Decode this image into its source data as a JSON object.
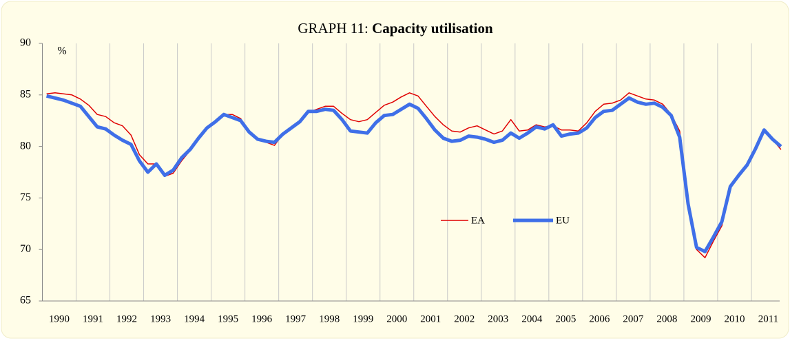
{
  "chart_data": {
    "type": "line",
    "title_prefix": "GRAPH 11:",
    "title": "Capacity utilisation",
    "ylabel": "%",
    "categories": [
      "1990",
      null,
      null,
      null,
      "1991",
      null,
      null,
      null,
      "1992",
      null,
      null,
      null,
      "1993",
      null,
      null,
      null,
      "1994",
      null,
      null,
      null,
      "1995",
      null,
      null,
      null,
      "1996",
      null,
      null,
      null,
      "1997",
      null,
      null,
      null,
      "1998",
      null,
      null,
      null,
      "1999",
      null,
      null,
      null,
      "2000",
      null,
      null,
      null,
      "2001",
      null,
      null,
      null,
      "2002",
      null,
      null,
      null,
      "2003",
      null,
      null,
      null,
      "2004",
      null,
      null,
      null,
      "2005",
      null,
      null,
      null,
      "2006",
      null,
      null,
      null,
      "2007",
      null,
      null,
      null,
      "2008",
      null,
      null,
      null,
      "2009",
      null,
      null,
      null,
      "2010",
      null,
      null,
      null,
      "2011",
      null,
      null,
      null
    ],
    "series": [
      {
        "name": "EA",
        "color": "#e00000",
        "width": 1.5,
        "values": [
          85.1,
          85.2,
          85.1,
          85.0,
          84.6,
          84.0,
          83.1,
          82.9,
          82.3,
          82.0,
          81.1,
          79.2,
          78.3,
          78.3,
          77.1,
          77.4,
          78.6,
          79.6,
          80.7,
          81.8,
          82.4,
          83.1,
          83.1,
          82.7,
          81.4,
          80.7,
          80.4,
          80.1,
          81.2,
          81.7,
          82.3,
          83.3,
          83.6,
          83.9,
          83.9,
          83.2,
          82.6,
          82.4,
          82.6,
          83.3,
          84.0,
          84.3,
          84.8,
          85.2,
          84.9,
          83.9,
          82.9,
          82.1,
          81.5,
          81.4,
          81.8,
          82.0,
          81.6,
          81.2,
          81.5,
          82.6,
          81.5,
          81.6,
          82.1,
          81.9,
          82.0,
          81.6,
          81.6,
          81.5,
          82.3,
          83.4,
          84.1,
          84.2,
          84.5,
          85.2,
          84.9,
          84.6,
          84.5,
          84.1,
          83.1,
          81.5,
          74.8,
          70.0,
          69.2,
          70.8,
          72.3,
          75.9,
          77.3,
          78.2,
          79.9,
          81.4,
          80.7,
          79.7
        ]
      },
      {
        "name": "EU",
        "color": "#3f6fe8",
        "width": 5,
        "values": [
          84.9,
          84.7,
          84.5,
          84.2,
          83.9,
          82.9,
          81.9,
          81.7,
          81.1,
          80.6,
          80.2,
          78.6,
          77.5,
          78.3,
          77.2,
          77.7,
          78.9,
          79.7,
          80.8,
          81.8,
          82.4,
          83.1,
          82.8,
          82.5,
          81.4,
          80.7,
          80.5,
          80.4,
          81.2,
          81.8,
          82.4,
          83.4,
          83.4,
          83.6,
          83.5,
          82.6,
          81.5,
          81.4,
          81.3,
          82.3,
          83.0,
          83.1,
          83.6,
          84.1,
          83.7,
          82.7,
          81.6,
          80.8,
          80.5,
          80.6,
          81.0,
          80.9,
          80.7,
          80.4,
          80.6,
          81.3,
          80.8,
          81.3,
          81.9,
          81.7,
          82.1,
          81.0,
          81.2,
          81.3,
          81.8,
          82.8,
          83.4,
          83.5,
          84.1,
          84.7,
          84.3,
          84.1,
          84.2,
          83.8,
          83.0,
          80.9,
          74.4,
          70.2,
          69.8,
          71.2,
          72.7,
          76.1,
          77.2,
          78.2,
          79.8,
          81.6,
          80.7,
          80.0
        ]
      }
    ],
    "ylim": [
      65,
      90
    ],
    "yticks": [
      65,
      70,
      75,
      80,
      85,
      90
    ],
    "grid": true,
    "legend": "center"
  }
}
